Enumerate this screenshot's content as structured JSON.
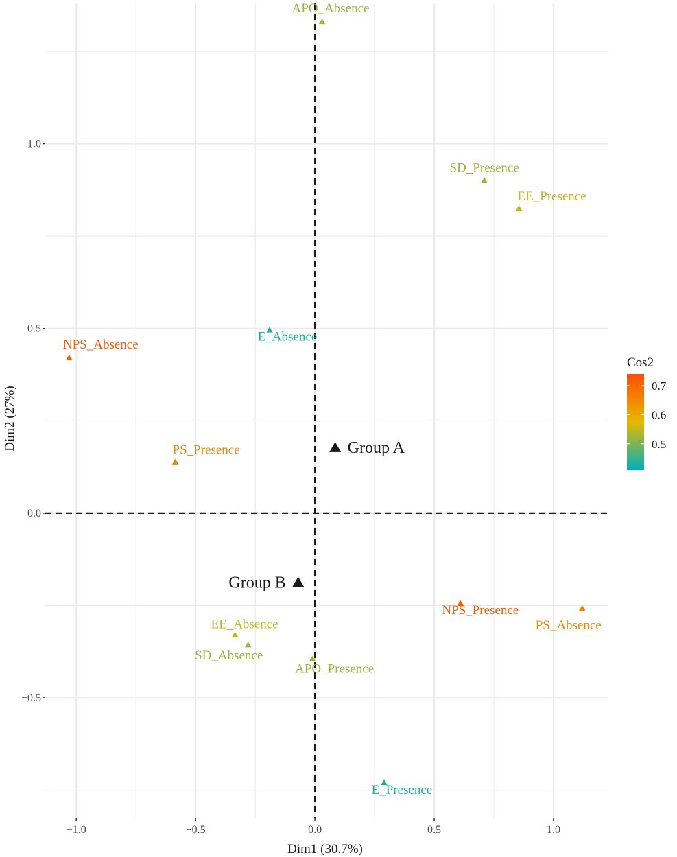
{
  "chart_data": {
    "type": "scatter",
    "xlabel": "Dim1 (30.7%)",
    "ylabel": "Dim2 (27%)",
    "xlim": [
      -1.13,
      1.23
    ],
    "ylim": [
      -0.825,
      1.38
    ],
    "x_ticks": [
      {
        "value": -1.0,
        "label": "−1.0"
      },
      {
        "value": -0.5,
        "label": "−0.5"
      },
      {
        "value": 0.0,
        "label": "0.0"
      },
      {
        "value": 0.5,
        "label": "0.5"
      },
      {
        "value": 1.0,
        "label": "1.0"
      }
    ],
    "y_ticks": [
      {
        "value": -0.5,
        "label": "−0.5"
      },
      {
        "value": 0.0,
        "label": "0.0"
      },
      {
        "value": 0.5,
        "label": "0.5"
      },
      {
        "value": 1.0,
        "label": "1.0"
      }
    ],
    "grid": true,
    "reference_lines": {
      "x": 0,
      "y": 0,
      "style": "dashed"
    },
    "points": [
      {
        "label": "APO_Absence",
        "x": 0.03,
        "y": 1.33,
        "cos2": 0.52
      },
      {
        "label": "SD_Presence",
        "x": 0.71,
        "y": 0.9,
        "cos2": 0.52
      },
      {
        "label": "EE_Presence",
        "x": 0.855,
        "y": 0.825,
        "cos2": 0.55
      },
      {
        "label": "E_Absence",
        "x": -0.19,
        "y": 0.495,
        "cos2": 0.43
      },
      {
        "label": "NPS_Absence",
        "x": -1.03,
        "y": 0.42,
        "cos2": 0.72
      },
      {
        "label": "PS_Presence",
        "x": -0.585,
        "y": 0.138,
        "cos2": 0.66
      },
      {
        "label": "NPS_Presence",
        "x": 0.61,
        "y": -0.245,
        "cos2": 0.72
      },
      {
        "label": "PS_Absence",
        "x": 1.12,
        "y": -0.258,
        "cos2": 0.66
      },
      {
        "label": "EE_Absence",
        "x": -0.335,
        "y": -0.33,
        "cos2": 0.55
      },
      {
        "label": "SD_Absence",
        "x": -0.28,
        "y": -0.357,
        "cos2": 0.52
      },
      {
        "label": "APO_Presence",
        "x": -0.01,
        "y": -0.395,
        "cos2": 0.52
      },
      {
        "label": "E_Presence",
        "x": 0.29,
        "y": -0.73,
        "cos2": 0.43
      }
    ],
    "groups": [
      {
        "label": "Group A",
        "x": 0.085,
        "y": 0.18
      },
      {
        "label": "Group B",
        "x": -0.07,
        "y": -0.185
      }
    ],
    "colorbar": {
      "title": "Cos2",
      "min": 0.41,
      "max": 0.74,
      "ticks": [
        {
          "value": 0.5,
          "label": "0.5"
        },
        {
          "value": 0.6,
          "label": "0.6"
        },
        {
          "value": 0.7,
          "label": "0.7"
        }
      ],
      "colors": [
        "#00afbb",
        "#e7b800",
        "#fc4e07"
      ]
    }
  }
}
